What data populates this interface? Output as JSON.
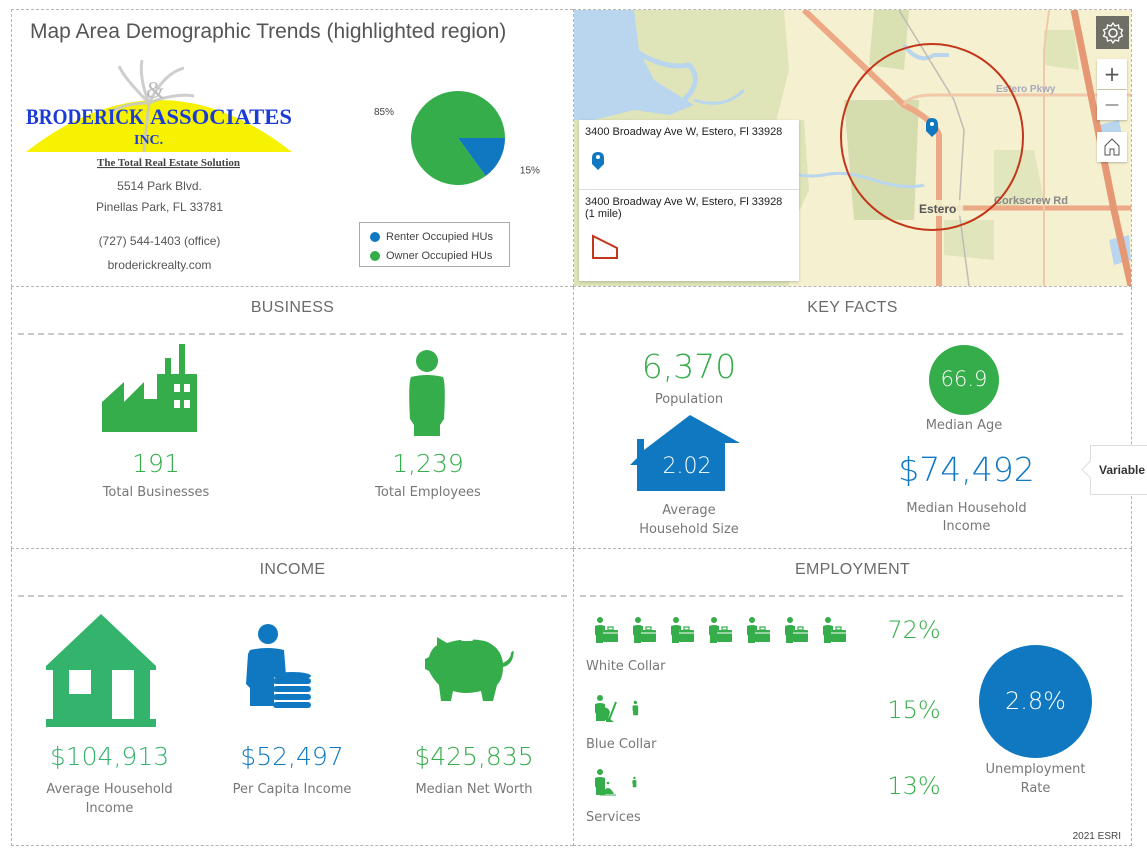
{
  "header": {
    "title": "Map Area Demographic Trends (highlighted region)",
    "logo": {
      "company": "Broderick & Associates",
      "brand_left": "BRODERICK",
      "brand_amp": "&",
      "brand_right": "ASSOCIATES",
      "suffix": "INC.",
      "tagline": "The Total Real Estate Solution"
    },
    "address_line1": "5514 Park Blvd.",
    "address_line2": "Pinellas Park, FL 33781",
    "phone": "(727) 544-1403 (office)",
    "website": "broderickrealty.com"
  },
  "chart_data": {
    "type": "pie",
    "title": "",
    "series": [
      {
        "name": "Renter Occupied HUs",
        "value": 15,
        "label": "15%",
        "color": "#0f78c1"
      },
      {
        "name": "Owner Occupied HUs",
        "value": 85,
        "label": "85%",
        "color": "#35ad4a"
      }
    ],
    "legend": "bottom"
  },
  "map": {
    "popup": [
      {
        "title": "3400 Broadway Ave W, Estero, Fl 33928",
        "subtitle": "",
        "symbol": "pin-icon"
      },
      {
        "title": "3400 Broadway Ave W, Estero, Fl 33928",
        "subtitle": "(1 mile)",
        "symbol": "polygon-icon"
      }
    ],
    "labels": {
      "place": "Estero",
      "road1": "Estero Pkwy",
      "road2": "Corkscrew Rd"
    },
    "controls": {
      "zoom_in": "+",
      "zoom_out": "—"
    }
  },
  "business": {
    "title": "BUSINESS",
    "stats": [
      {
        "value": "191",
        "label": "Total Businesses",
        "icon": "factory-icon"
      },
      {
        "value": "1,239",
        "label": "Total Employees",
        "icon": "person-icon"
      }
    ]
  },
  "key_facts": {
    "title": "KEY FACTS",
    "population": {
      "value": "6,370",
      "label": "Population"
    },
    "median_age": {
      "value": "66.9",
      "label": "Median Age"
    },
    "household_size": {
      "value": "2.02",
      "label_line1": "Average",
      "label_line2": "Household Size"
    },
    "median_income": {
      "value": "$74,492",
      "label_line1": "Median Household",
      "label_line2": "Income"
    }
  },
  "tooltip": {
    "text": "Variable"
  },
  "income": {
    "title": "INCOME",
    "stats": [
      {
        "value": "$104,913",
        "label_line1": "Average Household",
        "label_line2": "Income",
        "icon": "house-icon"
      },
      {
        "value": "$52,497",
        "label_line1": "Per Capita Income",
        "label_line2": "",
        "icon": "person-coins-icon"
      },
      {
        "value": "$425,835",
        "label_line1": "Median Net Worth",
        "label_line2": "",
        "icon": "piggy-bank-icon"
      }
    ]
  },
  "employment": {
    "title": "EMPLOYMENT",
    "rows": [
      {
        "label": "White Collar",
        "percent": "72%",
        "value": 72,
        "icon": "white-collar-worker-icon"
      },
      {
        "label": "Blue Collar",
        "percent": "15%",
        "value": 15,
        "icon": "blue-collar-worker-icon"
      },
      {
        "label": "Services",
        "percent": "13%",
        "value": 13,
        "icon": "service-worker-icon"
      }
    ],
    "unemployment": {
      "value": "2.8%",
      "label_line1": "Unemployment",
      "label_line2": "Rate"
    },
    "source": "2021 ESRI"
  },
  "colors": {
    "green": "#35ad4a",
    "blue": "#0f78c1",
    "house_green": "#33b36b"
  }
}
